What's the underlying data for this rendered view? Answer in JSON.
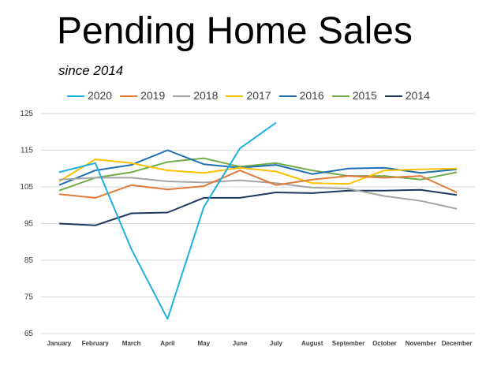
{
  "title": "Pending Home Sales",
  "subtitle": "since 2014",
  "chart_data": {
    "type": "line",
    "categories": [
      "January",
      "February",
      "March",
      "April",
      "May",
      "June",
      "July",
      "August",
      "September",
      "October",
      "November",
      "December"
    ],
    "ylim": [
      65,
      125
    ],
    "yticks": [
      65,
      75,
      85,
      95,
      105,
      115,
      125
    ],
    "grid": true,
    "legend_position": "top",
    "series": [
      {
        "name": "2020",
        "color": "#1fb0e0",
        "values": [
          109.0,
          111.5,
          88.0,
          69.0,
          99.5,
          115.5,
          122.5,
          null,
          null,
          null,
          null,
          null
        ]
      },
      {
        "name": "2019",
        "color": "#e07b3a",
        "values": [
          103.0,
          102.0,
          105.5,
          104.3,
          105.2,
          109.5,
          105.5,
          107.0,
          108.0,
          107.5,
          108.0,
          103.5
        ]
      },
      {
        "name": "2018",
        "color": "#a5a5a5",
        "values": [
          107.0,
          107.5,
          107.5,
          106.5,
          106.2,
          106.8,
          106.0,
          104.8,
          104.5,
          102.5,
          101.2,
          99.0
        ]
      },
      {
        "name": "2017",
        "color": "#ffc000",
        "values": [
          106.5,
          112.5,
          111.5,
          109.5,
          108.8,
          110.2,
          109.2,
          106.0,
          105.8,
          109.5,
          109.8,
          110.0
        ]
      },
      {
        "name": "2016",
        "color": "#1f6fb2",
        "values": [
          105.5,
          109.5,
          111.0,
          115.0,
          111.2,
          110.2,
          111.0,
          108.5,
          110.0,
          110.2,
          108.8,
          109.8
        ]
      },
      {
        "name": "2015",
        "color": "#70ad47",
        "values": [
          104.0,
          107.5,
          109.0,
          111.8,
          112.8,
          110.5,
          111.5,
          109.5,
          108.0,
          108.0,
          107.0,
          109.0
        ]
      },
      {
        "name": "2014",
        "color": "#203864",
        "values": [
          95.0,
          94.5,
          97.8,
          98.0,
          102.0,
          102.0,
          103.5,
          103.3,
          104.0,
          104.0,
          104.2,
          102.8
        ]
      }
    ]
  }
}
